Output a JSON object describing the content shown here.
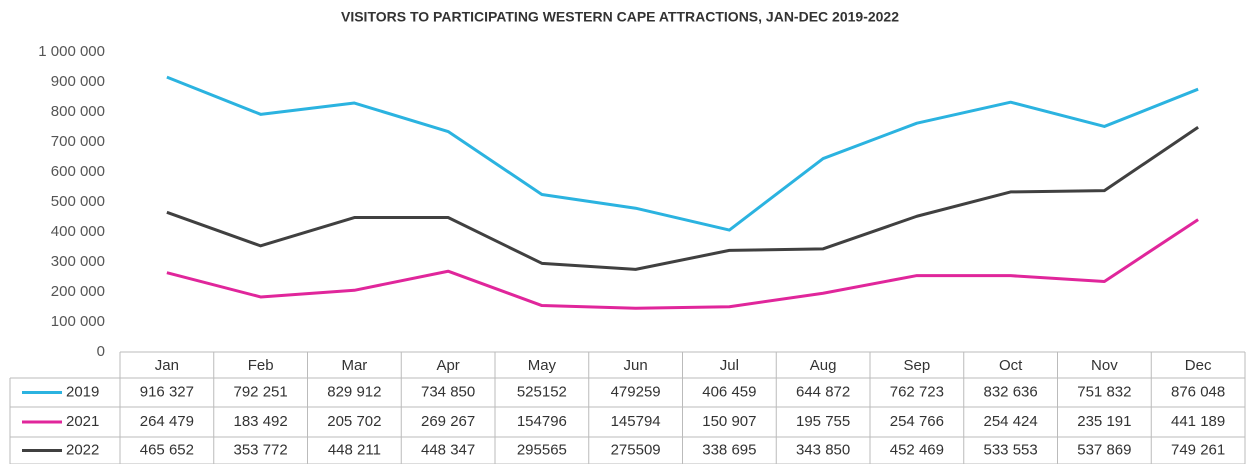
{
  "chart_data": {
    "type": "line",
    "title": "VISITORS TO PARTICIPATING WESTERN CAPE ATTRACTIONS, JAN-DEC 2019-2022",
    "categories": [
      "Jan",
      "Feb",
      "Mar",
      "Apr",
      "May",
      "Jun",
      "Jul",
      "Aug",
      "Sep",
      "Oct",
      "Nov",
      "Dec"
    ],
    "series": [
      {
        "name": "2019",
        "color": "#2bb3e0",
        "values": [
          916327,
          792251,
          829912,
          734850,
          525152,
          479259,
          406459,
          644872,
          762723,
          832636,
          751832,
          876048
        ],
        "value_labels": [
          "916 327",
          "792 251",
          "829 912",
          "734 850",
          "525152",
          "479259",
          "406 459",
          "644 872",
          "762 723",
          "832 636",
          "751 832",
          "876 048"
        ]
      },
      {
        "name": "2021",
        "color": "#e0269b",
        "values": [
          264479,
          183492,
          205702,
          269267,
          154796,
          145794,
          150907,
          195755,
          254766,
          254424,
          235191,
          441189
        ],
        "value_labels": [
          "264 479",
          "183 492",
          "205 702",
          "269 267",
          "154796",
          "145794",
          "150 907",
          "195 755",
          "254 766",
          "254 424",
          "235 191",
          "441 189"
        ]
      },
      {
        "name": "2022",
        "color": "#404040",
        "values": [
          465652,
          353772,
          448211,
          448347,
          295565,
          275509,
          338695,
          343850,
          452469,
          533553,
          537869,
          749261
        ],
        "value_labels": [
          "465 652",
          "353 772",
          "448 211",
          "448 347",
          "295565",
          "275509",
          "338 695",
          "343 850",
          "452 469",
          "533 553",
          "537 869",
          "749 261"
        ]
      }
    ],
    "ylim": [
      0,
      1000000
    ],
    "yticks": [
      0,
      {
        "value": 100000,
        "label": "100 000"
      },
      {
        "value": 200000,
        "label": "200 000"
      },
      {
        "value": 300000,
        "label": "300 000"
      },
      {
        "value": 400000,
        "label": "400 000"
      },
      {
        "value": 500000,
        "label": "500 000"
      },
      {
        "value": 600000,
        "label": "600 000"
      },
      {
        "value": 700000,
        "label": "700 000"
      },
      {
        "value": 800000,
        "label": "800 000"
      },
      {
        "value": 900000,
        "label": "900 000"
      },
      {
        "value": 1000000,
        "label": "1 000 000"
      }
    ],
    "grid": false
  }
}
